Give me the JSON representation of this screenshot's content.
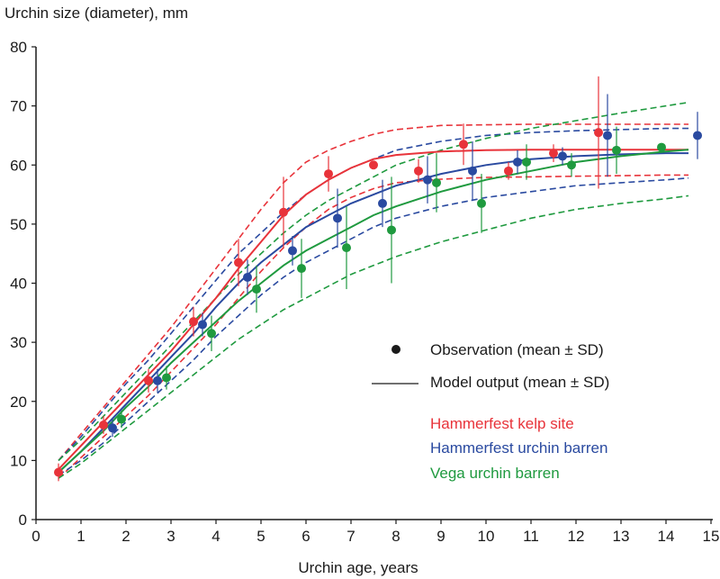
{
  "chart_data": {
    "type": "line",
    "ylabel": "Urchin size (diameter), mm",
    "xlabel": "Urchin age, years",
    "xlim": [
      0,
      15
    ],
    "ylim": [
      0,
      80
    ],
    "x_ticks": [
      0,
      1,
      2,
      3,
      4,
      5,
      6,
      7,
      8,
      9,
      10,
      11,
      12,
      13,
      14,
      15
    ],
    "y_ticks": [
      0,
      10,
      20,
      30,
      40,
      50,
      60,
      70,
      80
    ],
    "grid": false,
    "legend": {
      "placement": "center-right",
      "observation_label": "Observation (mean ± SD)",
      "model_label": "Model output (mean ± SD)",
      "sites": [
        {
          "name": "Hammerfest kelp site",
          "color": "#e8333a"
        },
        {
          "name": "Hammerfest urchin barren",
          "color": "#2a4aa0"
        },
        {
          "name": "Vega urchin barren",
          "color": "#1f9a3f"
        }
      ]
    },
    "series": [
      {
        "name": "Hammerfest kelp site",
        "color": "#e8333a",
        "observations": [
          {
            "x": 0.5,
            "y": 8,
            "sd": 1.5
          },
          {
            "x": 1.5,
            "y": 16,
            "sd": 1.5
          },
          {
            "x": 2.5,
            "y": 23.5,
            "sd": 2
          },
          {
            "x": 3.5,
            "y": 33.5,
            "sd": 2.5
          },
          {
            "x": 4.5,
            "y": 43.5,
            "sd": 4
          },
          {
            "x": 5.5,
            "y": 52,
            "sd": 6
          },
          {
            "x": 6.5,
            "y": 58.5,
            "sd": 3
          },
          {
            "x": 7.5,
            "y": 60,
            "sd": 0.5
          },
          {
            "x": 8.5,
            "y": 59,
            "sd": 2
          },
          {
            "x": 9.5,
            "y": 63.5,
            "sd": 3.5
          },
          {
            "x": 10.5,
            "y": 59,
            "sd": 1.5
          },
          {
            "x": 11.5,
            "y": 62,
            "sd": 1.5
          },
          {
            "x": 12.5,
            "y": 65.5,
            "sd": 9.5
          }
        ],
        "model_mean": [
          [
            0.5,
            8.5
          ],
          [
            1,
            12.5
          ],
          [
            1.5,
            16.5
          ],
          [
            2,
            20.5
          ],
          [
            2.5,
            24.5
          ],
          [
            3,
            28.5
          ],
          [
            3.5,
            33
          ],
          [
            4,
            37.5
          ],
          [
            4.5,
            42.5
          ],
          [
            5,
            47
          ],
          [
            5.5,
            51.5
          ],
          [
            6,
            55
          ],
          [
            6.5,
            57.5
          ],
          [
            7,
            59.5
          ],
          [
            7.5,
            61
          ],
          [
            8,
            61.7
          ],
          [
            9,
            62.3
          ],
          [
            10,
            62.5
          ],
          [
            11,
            62.6
          ],
          [
            12,
            62.6
          ],
          [
            13,
            62.6
          ],
          [
            14,
            62.6
          ],
          [
            14.5,
            62.6
          ]
        ],
        "model_upper": [
          [
            0.5,
            10
          ],
          [
            1,
            14.5
          ],
          [
            1.5,
            19
          ],
          [
            2,
            23.5
          ],
          [
            2.5,
            28
          ],
          [
            3,
            32.5
          ],
          [
            3.5,
            37.5
          ],
          [
            4,
            42.5
          ],
          [
            4.5,
            47.5
          ],
          [
            5,
            52.5
          ],
          [
            5.5,
            57
          ],
          [
            6,
            60.5
          ],
          [
            6.5,
            62.5
          ],
          [
            7,
            64
          ],
          [
            7.5,
            65.2
          ],
          [
            8,
            66
          ],
          [
            9,
            66.7
          ],
          [
            10,
            66.8
          ],
          [
            11,
            66.9
          ],
          [
            12,
            66.9
          ],
          [
            13,
            66.9
          ],
          [
            14,
            66.9
          ],
          [
            14.5,
            66.9
          ]
        ],
        "model_lower": [
          [
            0.5,
            7
          ],
          [
            1,
            10.5
          ],
          [
            1.5,
            14
          ],
          [
            2,
            17.5
          ],
          [
            2.5,
            21
          ],
          [
            3,
            25
          ],
          [
            3.5,
            29
          ],
          [
            4,
            33
          ],
          [
            4.5,
            37.5
          ],
          [
            5,
            42
          ],
          [
            5.5,
            46
          ],
          [
            6,
            49.5
          ],
          [
            6.5,
            52.5
          ],
          [
            7,
            54.5
          ],
          [
            7.5,
            56
          ],
          [
            8,
            57
          ],
          [
            9,
            57.6
          ],
          [
            10,
            57.9
          ],
          [
            11,
            58
          ],
          [
            12,
            58.1
          ],
          [
            13,
            58.2
          ],
          [
            14,
            58.3
          ],
          [
            14.5,
            58.3
          ]
        ]
      },
      {
        "name": "Hammerfest urchin barren",
        "color": "#2a4aa0",
        "observations": [
          {
            "x": 1.7,
            "y": 15.5,
            "sd": 1.5
          },
          {
            "x": 2.7,
            "y": 23.5,
            "sd": 2
          },
          {
            "x": 3.7,
            "y": 33,
            "sd": 2
          },
          {
            "x": 4.7,
            "y": 41,
            "sd": 3
          },
          {
            "x": 5.7,
            "y": 45.5,
            "sd": 2.5
          },
          {
            "x": 6.7,
            "y": 51,
            "sd": 5
          },
          {
            "x": 7.7,
            "y": 53.5,
            "sd": 4
          },
          {
            "x": 8.7,
            "y": 57.5,
            "sd": 4
          },
          {
            "x": 9.7,
            "y": 59,
            "sd": 5
          },
          {
            "x": 10.7,
            "y": 60.5,
            "sd": 2
          },
          {
            "x": 11.7,
            "y": 61.5,
            "sd": 1.5
          },
          {
            "x": 12.7,
            "y": 65,
            "sd": 7
          },
          {
            "x": 14.7,
            "y": 65,
            "sd": 4
          }
        ],
        "model_mean": [
          [
            0.5,
            8
          ],
          [
            1,
            11.5
          ],
          [
            1.5,
            15.5
          ],
          [
            2,
            19.5
          ],
          [
            2.5,
            23.5
          ],
          [
            3,
            27.5
          ],
          [
            3.5,
            31.5
          ],
          [
            4,
            36
          ],
          [
            4.5,
            40
          ],
          [
            5,
            43.5
          ],
          [
            5.5,
            46.5
          ],
          [
            6,
            49.5
          ],
          [
            6.5,
            51.5
          ],
          [
            7,
            53.5
          ],
          [
            7.5,
            55
          ],
          [
            8,
            56.5
          ],
          [
            9,
            58.5
          ],
          [
            10,
            60
          ],
          [
            11,
            61
          ],
          [
            12,
            61.5
          ],
          [
            13,
            61.8
          ],
          [
            14,
            62
          ],
          [
            14.5,
            62
          ]
        ],
        "model_upper": [
          [
            0.5,
            10
          ],
          [
            1,
            14
          ],
          [
            1.5,
            18.5
          ],
          [
            2,
            23
          ],
          [
            2.5,
            27
          ],
          [
            3,
            31.5
          ],
          [
            3.5,
            36
          ],
          [
            4,
            40.5
          ],
          [
            4.5,
            45
          ],
          [
            5,
            48.5
          ],
          [
            5.5,
            52
          ],
          [
            6,
            55
          ],
          [
            6.5,
            57.5
          ],
          [
            7,
            59.5
          ],
          [
            7.5,
            61
          ],
          [
            8,
            62.5
          ],
          [
            9,
            64
          ],
          [
            10,
            65
          ],
          [
            11,
            65.5
          ],
          [
            12,
            65.8
          ],
          [
            13,
            66
          ],
          [
            14,
            66.2
          ],
          [
            14.5,
            66.2
          ]
        ],
        "model_lower": [
          [
            0.5,
            7.5
          ],
          [
            1,
            10
          ],
          [
            1.5,
            13
          ],
          [
            2,
            16.5
          ],
          [
            2.5,
            20
          ],
          [
            3,
            23.5
          ],
          [
            3.5,
            27
          ],
          [
            4,
            31
          ],
          [
            4.5,
            34.5
          ],
          [
            5,
            38
          ],
          [
            5.5,
            41
          ],
          [
            6,
            43.5
          ],
          [
            6.5,
            45.5
          ],
          [
            7,
            47.5
          ],
          [
            7.5,
            49.5
          ],
          [
            8,
            51
          ],
          [
            9,
            53
          ],
          [
            10,
            54.5
          ],
          [
            11,
            55.5
          ],
          [
            12,
            56.5
          ],
          [
            13,
            57
          ],
          [
            14,
            57.5
          ],
          [
            14.5,
            57.8
          ]
        ]
      },
      {
        "name": "Vega urchin barren",
        "color": "#1f9a3f",
        "observations": [
          {
            "x": 1.9,
            "y": 17,
            "sd": 1.5
          },
          {
            "x": 2.9,
            "y": 24,
            "sd": 2
          },
          {
            "x": 3.9,
            "y": 31.5,
            "sd": 3
          },
          {
            "x": 4.9,
            "y": 39,
            "sd": 4
          },
          {
            "x": 5.9,
            "y": 42.5,
            "sd": 5
          },
          {
            "x": 6.9,
            "y": 46,
            "sd": 7
          },
          {
            "x": 7.9,
            "y": 49,
            "sd": 9
          },
          {
            "x": 8.9,
            "y": 57,
            "sd": 5
          },
          {
            "x": 9.9,
            "y": 53.5,
            "sd": 5
          },
          {
            "x": 10.9,
            "y": 60.5,
            "sd": 3
          },
          {
            "x": 11.9,
            "y": 60,
            "sd": 2
          },
          {
            "x": 12.9,
            "y": 62.5,
            "sd": 4
          },
          {
            "x": 13.9,
            "y": 63,
            "sd": 0.5
          }
        ],
        "model_mean": [
          [
            0.5,
            8
          ],
          [
            1,
            11.5
          ],
          [
            1.5,
            15
          ],
          [
            2,
            19
          ],
          [
            2.5,
            22.5
          ],
          [
            3,
            26.5
          ],
          [
            3.5,
            30
          ],
          [
            4,
            33.5
          ],
          [
            4.5,
            37
          ],
          [
            5,
            40
          ],
          [
            5.5,
            43
          ],
          [
            6,
            45.5
          ],
          [
            6.5,
            47.5
          ],
          [
            7,
            49.5
          ],
          [
            7.5,
            51.5
          ],
          [
            8,
            53
          ],
          [
            9,
            55.5
          ],
          [
            10,
            57.5
          ],
          [
            11,
            59
          ],
          [
            12,
            60.5
          ],
          [
            13,
            61.5
          ],
          [
            14,
            62.3
          ],
          [
            14.5,
            62.6
          ]
        ],
        "model_upper": [
          [
            0.5,
            10
          ],
          [
            1,
            13.5
          ],
          [
            1.5,
            17.5
          ],
          [
            2,
            21.5
          ],
          [
            2.5,
            25.5
          ],
          [
            3,
            29.5
          ],
          [
            3.5,
            33.5
          ],
          [
            4,
            37.5
          ],
          [
            4.5,
            41.5
          ],
          [
            5,
            45
          ],
          [
            5.5,
            48.5
          ],
          [
            6,
            51.5
          ],
          [
            6.5,
            54
          ],
          [
            7,
            56
          ],
          [
            7.5,
            58
          ],
          [
            8,
            60
          ],
          [
            9,
            62.5
          ],
          [
            10,
            64.5
          ],
          [
            11,
            66.2
          ],
          [
            12,
            67.5
          ],
          [
            13,
            68.8
          ],
          [
            14,
            70
          ],
          [
            14.5,
            70.6
          ]
        ],
        "model_lower": [
          [
            0.5,
            7
          ],
          [
            1,
            9.5
          ],
          [
            1.5,
            12.5
          ],
          [
            2,
            15.5
          ],
          [
            2.5,
            18.5
          ],
          [
            3,
            21.5
          ],
          [
            3.5,
            24.5
          ],
          [
            4,
            27.5
          ],
          [
            4.5,
            30.5
          ],
          [
            5,
            33
          ],
          [
            5.5,
            35.5
          ],
          [
            6,
            37.5
          ],
          [
            6.5,
            39.5
          ],
          [
            7,
            41.5
          ],
          [
            7.5,
            43
          ],
          [
            8,
            44.5
          ],
          [
            9,
            47
          ],
          [
            10,
            49
          ],
          [
            11,
            51
          ],
          [
            12,
            52.5
          ],
          [
            13,
            53.5
          ],
          [
            14,
            54.3
          ],
          [
            14.5,
            54.8
          ]
        ]
      }
    ]
  }
}
